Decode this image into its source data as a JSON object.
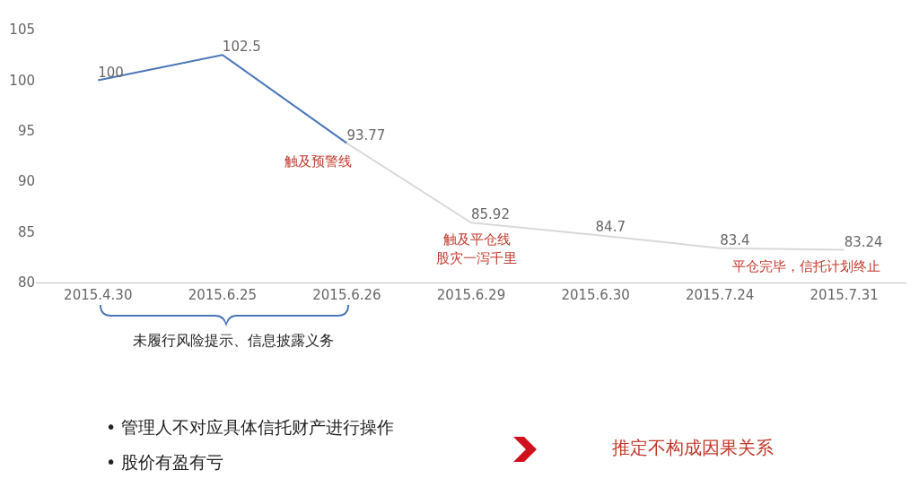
{
  "chart_data": {
    "type": "line",
    "categories": [
      "2015.4.30",
      "2015.6.25",
      "2015.6.26",
      "2015.6.29",
      "2015.6.30",
      "2015.7.24",
      "2015.7.31"
    ],
    "series": [
      {
        "color": "#4a76b8",
        "values": [
          100,
          102.5,
          93.77,
          null,
          null,
          null,
          null
        ],
        "value_labels": [
          "100",
          "102.5",
          "93.77",
          null,
          null,
          null,
          null
        ]
      },
      {
        "color": "#d9d9d9",
        "values": [
          null,
          null,
          93.77,
          85.92,
          84.7,
          83.4,
          83.24
        ],
        "value_labels": [
          null,
          null,
          null,
          "85.92",
          "84.7",
          "83.4",
          "83.24"
        ]
      }
    ],
    "ylim": [
      80,
      105
    ],
    "yticks": [
      80,
      85,
      90,
      95,
      100,
      105
    ],
    "grid": false,
    "marker": "none",
    "line_style": "solid",
    "annotations": [
      "触及预警线",
      "触及平仓线",
      "股灾一泻千里",
      "平仓完毕，信托计划终止",
      "未履行风险提示、信息披露义务",
      "• 管理人不对应具体信托财产进行操作",
      "• 股价有盈有亏",
      "推定不构成因果关系"
    ]
  }
}
